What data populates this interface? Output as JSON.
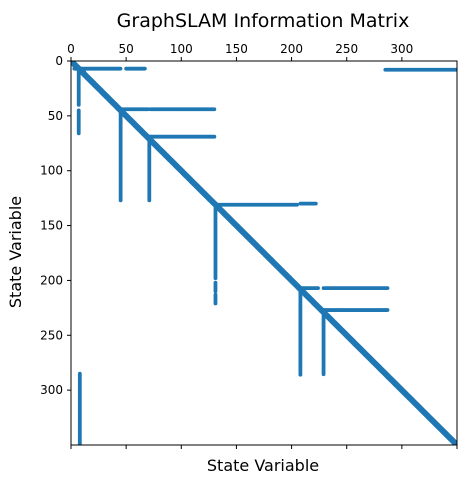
{
  "chart_data": {
    "type": "scatter",
    "title": "GraphSLAM Information Matrix",
    "xlabel": "State Variable",
    "ylabel": "State Variable",
    "xlim": [
      0,
      350
    ],
    "ylim": [
      350,
      0
    ],
    "x_ticks": [
      0,
      50,
      100,
      150,
      200,
      250,
      300
    ],
    "x_tick_labels": [
      "0",
      "50",
      "100",
      "150",
      "200",
      "250",
      "300"
    ],
    "x_axis_position": "top",
    "y_ticks": [
      0,
      50,
      100,
      150,
      200,
      250,
      300
    ],
    "y_tick_labels": [
      "0",
      "50",
      "100",
      "150",
      "200",
      "250",
      "300"
    ],
    "bottom_ticks": [
      0,
      50,
      100,
      150,
      200,
      250,
      300,
      350
    ],
    "grid": false,
    "marker_color": "#1f77b4",
    "description_of_marks": "sparsity pattern of a symmetric matrix; each segment is a run of nonzero entries from (x0,y0) to (x1,y1) in matrix index units",
    "diagonal": {
      "from": 0,
      "to": 350
    },
    "segments": [
      {
        "x0": 3,
        "y0": 7,
        "x1": 45,
        "y1": 7
      },
      {
        "x0": 50,
        "y0": 7,
        "x1": 67,
        "y1": 7
      },
      {
        "x0": 285,
        "y0": 8,
        "x1": 350,
        "y1": 8
      },
      {
        "x0": 7,
        "y0": 7,
        "x1": 7,
        "y1": 40
      },
      {
        "x0": 7,
        "y0": 45,
        "x1": 7,
        "y1": 66
      },
      {
        "x0": 4,
        "y0": 3,
        "x1": 12,
        "y1": 10
      },
      {
        "x0": 45,
        "y0": 44,
        "x1": 70,
        "y1": 44
      },
      {
        "x0": 72,
        "y0": 44,
        "x1": 130,
        "y1": 44
      },
      {
        "x0": 45,
        "y0": 44,
        "x1": 45,
        "y1": 127
      },
      {
        "x0": 70,
        "y0": 69,
        "x1": 130,
        "y1": 69
      },
      {
        "x0": 71,
        "y0": 69,
        "x1": 71,
        "y1": 127
      },
      {
        "x0": 131,
        "y0": 131,
        "x1": 205,
        "y1": 131
      },
      {
        "x0": 208,
        "y0": 130,
        "x1": 222,
        "y1": 130
      },
      {
        "x0": 131,
        "y0": 131,
        "x1": 131,
        "y1": 198
      },
      {
        "x0": 131,
        "y0": 202,
        "x1": 131,
        "y1": 210
      },
      {
        "x0": 131,
        "y0": 213,
        "x1": 131,
        "y1": 221
      },
      {
        "x0": 207,
        "y0": 207,
        "x1": 224,
        "y1": 207
      },
      {
        "x0": 229,
        "y0": 207,
        "x1": 287,
        "y1": 207
      },
      {
        "x0": 208,
        "y0": 208,
        "x1": 208,
        "y1": 286
      },
      {
        "x0": 228,
        "y0": 227,
        "x1": 287,
        "y1": 227
      },
      {
        "x0": 229,
        "y0": 227,
        "x1": 229,
        "y1": 286
      },
      {
        "x0": 8,
        "y0": 285,
        "x1": 8,
        "y1": 350
      }
    ]
  }
}
